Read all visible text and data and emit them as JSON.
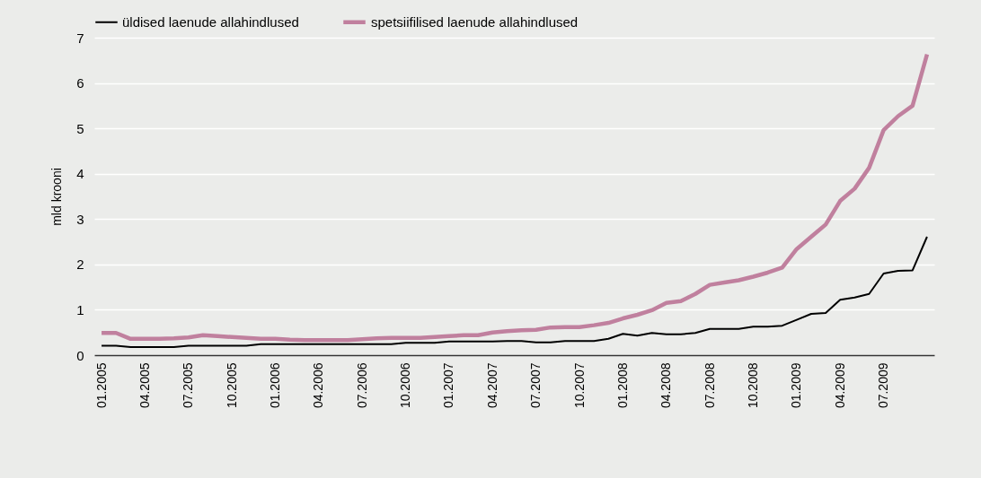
{
  "chart_data": {
    "type": "line",
    "ylabel": "mld krooni",
    "ylim": [
      0,
      7
    ],
    "yticks": [
      0,
      1,
      2,
      3,
      4,
      5,
      6,
      7
    ],
    "grid": "y",
    "legend": "top",
    "marker": "none",
    "line_style": "solid",
    "categories": [
      "01.2005",
      null,
      null,
      "04.2005",
      null,
      null,
      "07.2005",
      null,
      null,
      "10.2005",
      null,
      null,
      "01.2006",
      null,
      null,
      "04.2006",
      null,
      null,
      "07.2006",
      null,
      null,
      "10.2006",
      null,
      null,
      "01.2007",
      null,
      null,
      "04.2007",
      null,
      null,
      "07.2007",
      null,
      null,
      "10.2007",
      null,
      null,
      "01.2008",
      null,
      null,
      "04.2008",
      null,
      null,
      "07.2008",
      null,
      null,
      "10.2008",
      null,
      null,
      "01.2009",
      null,
      null,
      "04.2009",
      null,
      null,
      "07.2009",
      null,
      null,
      null
    ],
    "series": [
      {
        "name": "üldised laenude allahindlused",
        "color": "#000000",
        "values": [
          0.21,
          0.21,
          0.18,
          0.18,
          0.18,
          0.18,
          0.21,
          0.21,
          0.21,
          0.21,
          0.21,
          0.24,
          0.24,
          0.24,
          0.24,
          0.24,
          0.24,
          0.24,
          0.24,
          0.24,
          0.24,
          0.27,
          0.27,
          0.27,
          0.3,
          0.3,
          0.3,
          0.3,
          0.31,
          0.31,
          0.28,
          0.28,
          0.31,
          0.31,
          0.31,
          0.36,
          0.47,
          0.43,
          0.49,
          0.46,
          0.46,
          0.49,
          0.58,
          0.58,
          0.58,
          0.63,
          0.63,
          0.65,
          0.78,
          0.91,
          0.93,
          1.22,
          1.27,
          1.35,
          1.8,
          1.86,
          1.87,
          2.61
        ]
      },
      {
        "name": "spetsiifilised laenude allahindlused",
        "color": "#c0809e",
        "values": [
          0.49,
          0.49,
          0.36,
          0.36,
          0.36,
          0.37,
          0.39,
          0.44,
          0.42,
          0.4,
          0.38,
          0.36,
          0.36,
          0.34,
          0.33,
          0.33,
          0.33,
          0.33,
          0.35,
          0.37,
          0.38,
          0.38,
          0.38,
          0.4,
          0.42,
          0.44,
          0.44,
          0.5,
          0.53,
          0.55,
          0.56,
          0.61,
          0.62,
          0.62,
          0.66,
          0.71,
          0.81,
          0.89,
          0.99,
          1.15,
          1.19,
          1.35,
          1.55,
          1.6,
          1.65,
          1.73,
          1.82,
          1.93,
          2.34,
          2.61,
          2.88,
          3.4,
          3.67,
          4.13,
          4.96,
          5.27,
          5.5,
          6.63
        ]
      }
    ]
  }
}
